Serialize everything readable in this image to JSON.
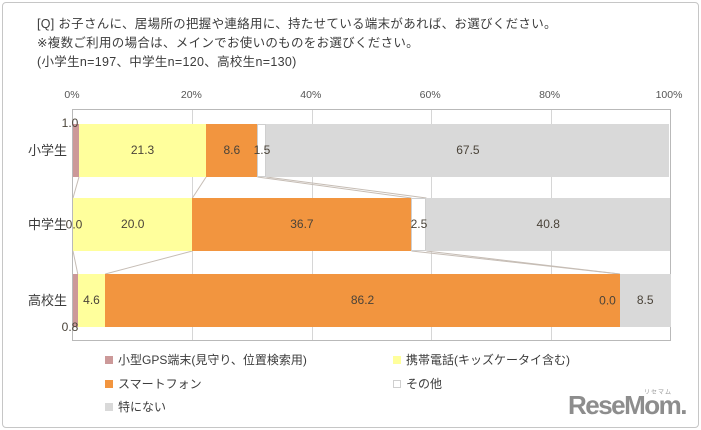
{
  "title": {
    "line1": "[Q] お子さんに、居場所の把握や連絡用に、持たせている端末があれば、お選びください。",
    "line2": "※複数ご利用の場合は、メインでお使いのものをお選びください。",
    "line3": "(小学生n=197、中学生n=120、高校生n=130)"
  },
  "chart_data": {
    "type": "bar",
    "stacked": true,
    "orientation": "horizontal",
    "categories": [
      "小学生",
      "中学生",
      "高校生"
    ],
    "series": [
      {
        "name": "小型GPS端末(見守り、位置検索用)",
        "color": "#CC9999",
        "values": [
          1.0,
          0.0,
          0.8
        ]
      },
      {
        "name": "携帯電話(キッズケータイ含む)",
        "color": "#FFFF9C",
        "values": [
          21.3,
          20.0,
          4.6
        ]
      },
      {
        "name": "スマートフォン",
        "color": "#F2953F",
        "values": [
          8.6,
          36.7,
          86.2
        ]
      },
      {
        "name": "その他",
        "color": "#FFFFFF",
        "values": [
          1.5,
          2.5,
          0.0
        ]
      },
      {
        "name": "特にない",
        "color": "#D9D9D9",
        "values": [
          67.5,
          40.8,
          8.5
        ]
      }
    ],
    "xlim": [
      0,
      100
    ],
    "x_ticks": [
      "0%",
      "20%",
      "40%",
      "60%",
      "80%",
      "100%"
    ],
    "grid": true,
    "legend_position": "bottom",
    "label_placements": [
      [
        "above-left",
        "center",
        "center",
        "center",
        "center"
      ],
      [
        "left",
        "center",
        "center",
        "center",
        "center"
      ],
      [
        "below-left",
        "center",
        "center",
        "before",
        "center"
      ]
    ]
  },
  "logo": {
    "text": "ReseMom.",
    "kana": "リセマム"
  }
}
